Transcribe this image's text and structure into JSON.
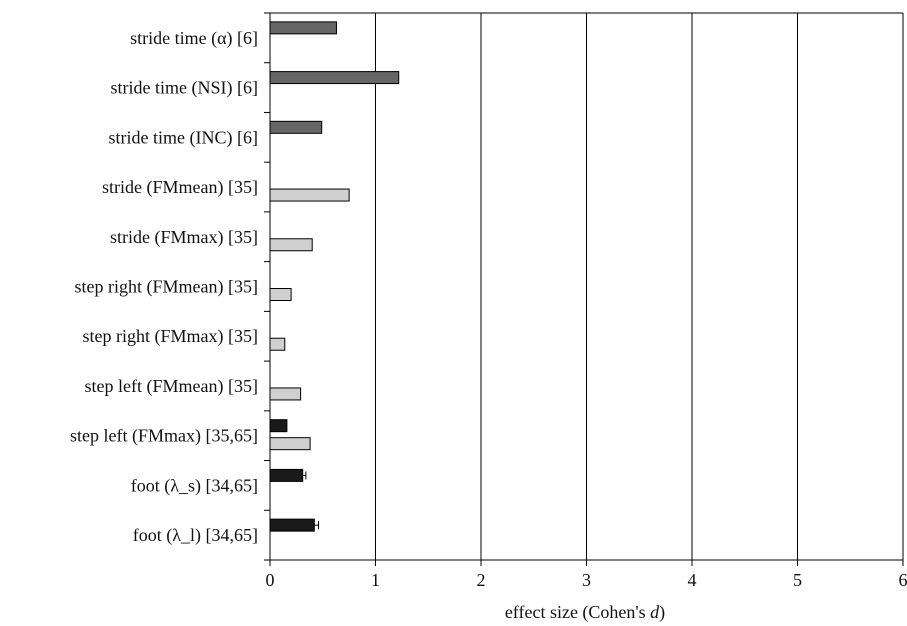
{
  "chart_data": {
    "type": "bar",
    "orientation": "horizontal",
    "categories": [
      "stride time (α) [6]",
      "stride time (NSI) [6]",
      "stride time (INC) [6]",
      "stride (FMmean) [35]",
      "stride (FMmax) [35]",
      "step right (FMmean) [35]",
      "step right (FMmax) [35]",
      "step left (FMmean) [35]",
      "step left (FMmax) [35,65]",
      "foot (λ_s) [34,65]",
      "foot (λ_l) [34,65]"
    ],
    "series": [
      {
        "color": "#666666",
        "values": [
          0.63,
          1.22,
          0.49,
          null,
          null,
          null,
          null,
          null,
          null,
          null,
          null
        ],
        "offset": "top"
      },
      {
        "color": "#d0d0d0",
        "values": [
          null,
          null,
          null,
          0.75,
          0.4,
          0.2,
          0.14,
          0.29,
          0.38,
          null,
          null
        ],
        "offset": "bottom"
      },
      {
        "color": "#1a1a1a",
        "values": [
          null,
          null,
          null,
          null,
          null,
          null,
          null,
          null,
          0.16,
          0.31,
          0.42
        ],
        "offset": "top",
        "errors": [
          null,
          null,
          null,
          null,
          null,
          null,
          null,
          null,
          null,
          0.03,
          0.04
        ]
      }
    ],
    "xlim": [
      0,
      6
    ],
    "xticks": [
      "0",
      "1",
      "2",
      "3",
      "4",
      "5",
      "6"
    ],
    "xlabel": "effect size (Cohen's d)",
    "xlabel_prefix": "effect size (Cohen's ",
    "xlabel_var": "d",
    "xlabel_suffix": ")",
    "grid": "vertical",
    "title": ""
  }
}
